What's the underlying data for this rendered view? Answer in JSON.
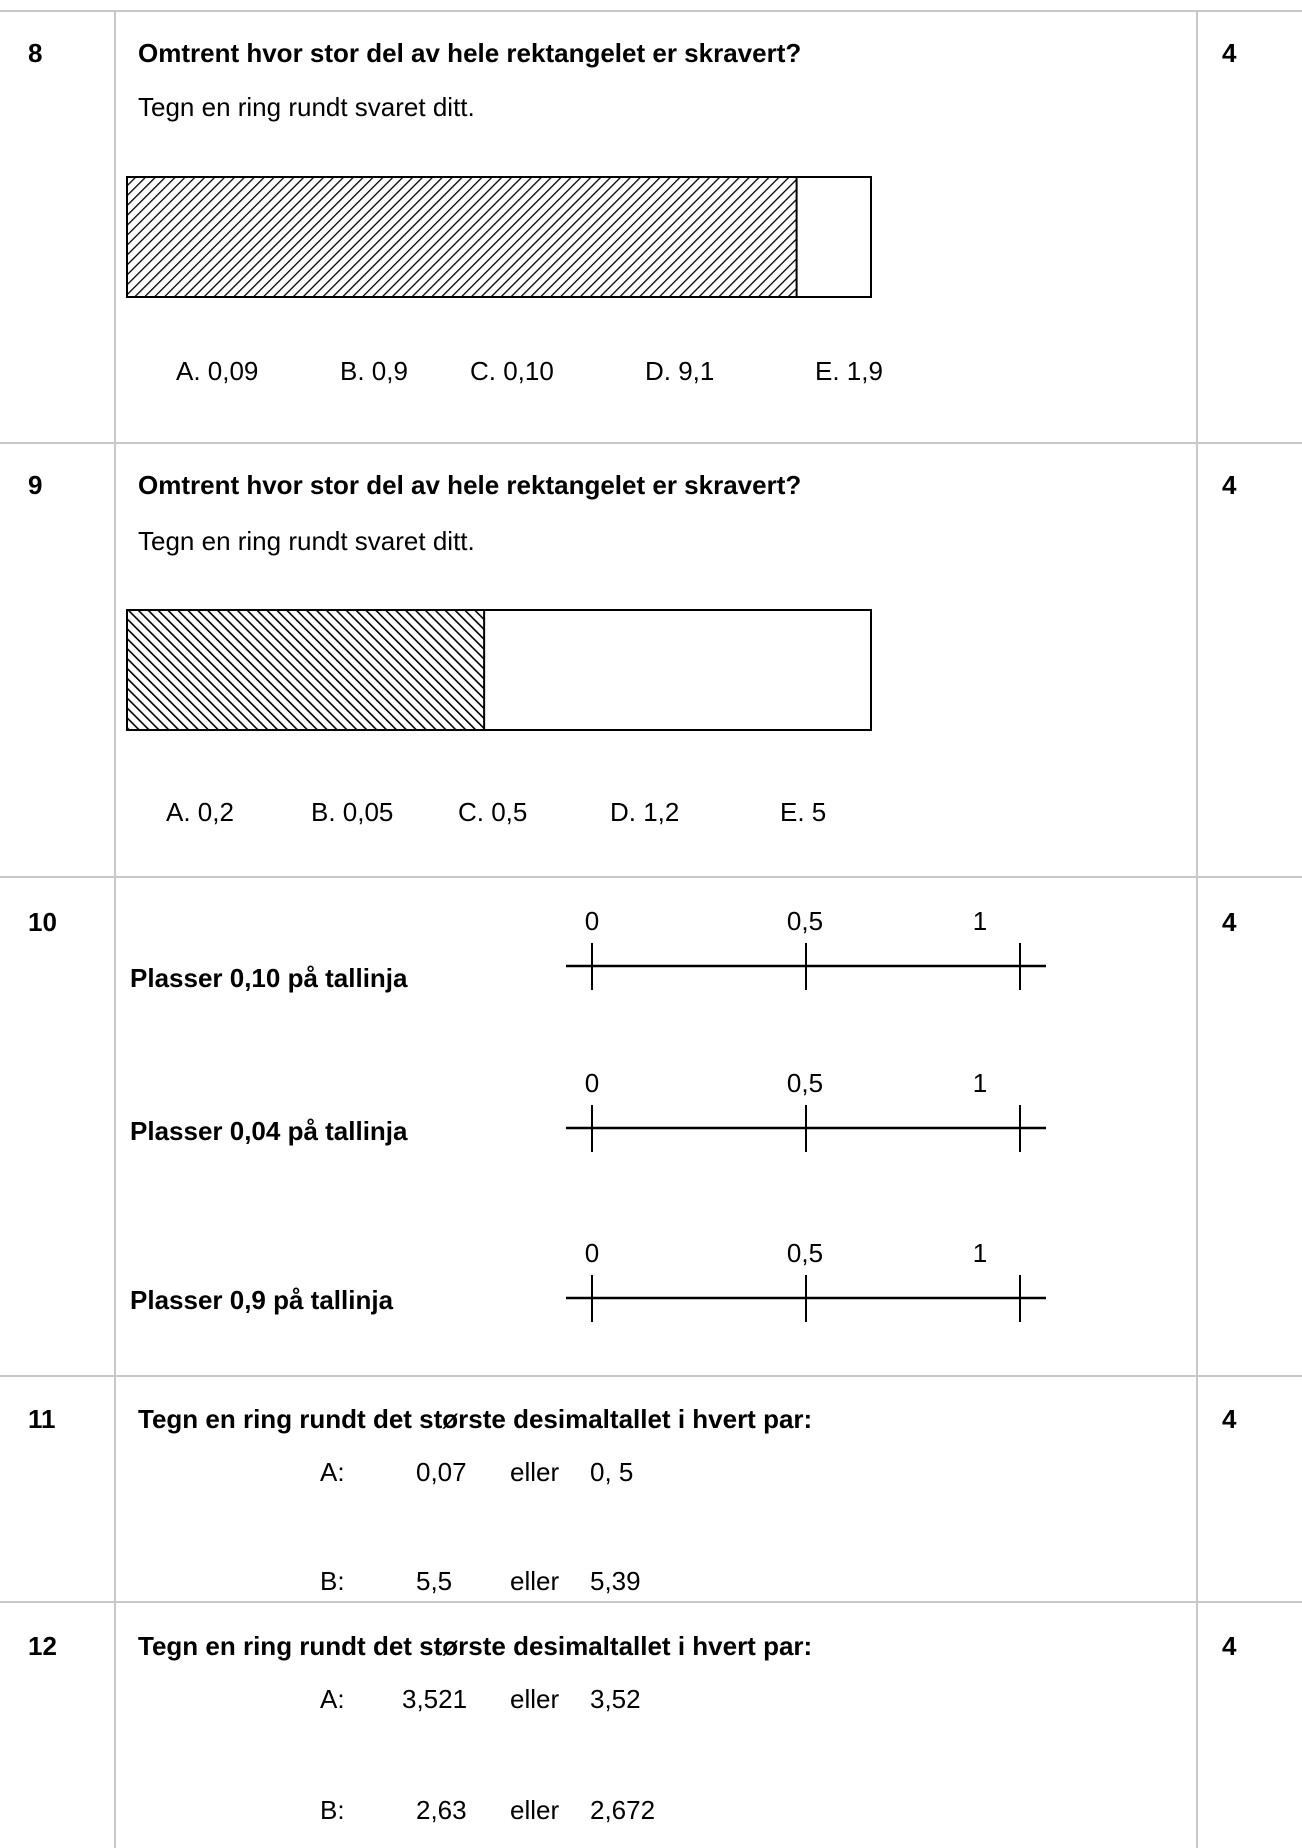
{
  "questions": [
    {
      "number": "8",
      "title": "Omtrent hvor stor del av hele rektangelet er skravert?",
      "instruction": "Tegn en ring rundt svaret ditt.",
      "shaded_fraction": 0.9,
      "options": [
        "A.  0,09",
        "B.  0,9",
        "C.  0,10",
        "D.  9,1",
        "E.   1,9"
      ],
      "points": "4"
    },
    {
      "number": "9",
      "title": "Omtrent hvor stor del av hele rektangelet er skravert?",
      "instruction": "Tegn en ring rundt svaret ditt.",
      "shaded_fraction": 0.48,
      "options": [
        "A.  0,2",
        "B.  0,05",
        "C.  0,5",
        "D.  1,2",
        "E.   5"
      ],
      "points": "4"
    },
    {
      "number": "10",
      "tasks": [
        "Plasser 0,10 på tallinja",
        "Plasser 0,04 på tallinja",
        "Plasser 0,9 på tallinja"
      ],
      "tick_labels": [
        "0",
        "0,5",
        "1"
      ],
      "points": "4"
    },
    {
      "number": "11",
      "title": "Tegn en ring rundt det største desimaltallet i hvert par:",
      "pairs": [
        {
          "label": "A:",
          "first": "0,07",
          "word": "eller",
          "second": "0, 5"
        },
        {
          "label": "B:",
          "first": "5,5",
          "word": "eller",
          "second": "5,39"
        }
      ],
      "points": "4"
    },
    {
      "number": "12",
      "title": "Tegn en ring rundt det største desimaltallet i hvert par:",
      "pairs": [
        {
          "label": "A:",
          "first": "3,521",
          "word": "eller",
          "second": "3,52"
        },
        {
          "label": "B:",
          "first": "2,63",
          "word": "eller",
          "second": "2,672"
        }
      ],
      "points": "4"
    }
  ]
}
